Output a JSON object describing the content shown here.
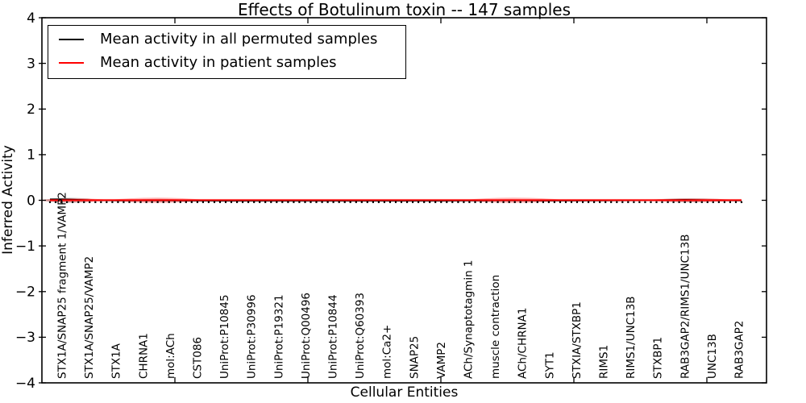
{
  "title": "Effects of Botulinum toxin -- 147 samples",
  "legend": {
    "entries": [
      {
        "label": "Mean activity in all permuted samples",
        "color": "#000000"
      },
      {
        "label": "Mean activity in patient samples",
        "color": "#ff0000"
      }
    ]
  },
  "chart_data": {
    "type": "line",
    "title": "Effects of Botulinum toxin -- 147 samples",
    "xlabel": "Cellular Entities",
    "ylabel": "Inferred Activity",
    "ylim": [
      -4,
      4
    ],
    "yticks": [
      4,
      3,
      2,
      1,
      0,
      -1,
      -2,
      -3,
      -4
    ],
    "grid": false,
    "legend_position": "upper left",
    "background": "#ffffff",
    "n_points": 123,
    "categories": [
      "STX1A/SNAP25 fragment 1/VAMP2",
      "STX1A/SNAP25/VAMP2",
      "STX1A",
      "CHRNA1",
      "mol:ACh",
      "CST086",
      "UniProt:P10845",
      "UniProt:P30996",
      "UniProt:P19321",
      "UniProt:Q00496",
      "UniProt:P10844",
      "UniProt:Q60393",
      "mol:Ca2+",
      "SNAP25",
      "VAMP2",
      "ACh/Synaptotagmin 1",
      "muscle contraction",
      "ACh/CHRNA1",
      "SYT1",
      "STXIA/STXBP1",
      "RIMS1",
      "RIMS1/UNC13B",
      "STXBP1",
      "RAB3GAP2/RIMS1/UNC13B",
      "UNC13B",
      "RAB3GAP2"
    ],
    "series": [
      {
        "name": "Mean activity in all permuted samples",
        "color": "#000000",
        "line_style": "dashed-with-markers",
        "values": [
          0.04,
          0.02,
          0.005,
          0.01,
          0.008,
          0.002,
          0,
          0,
          0,
          0,
          0,
          0,
          0,
          0,
          0,
          0.003,
          0.008,
          0.008,
          0.004,
          0.003,
          0.005,
          0.01,
          0.018,
          0.03,
          0.018,
          0.005
        ]
      },
      {
        "name": "Mean activity in patient samples",
        "color": "#ff0000",
        "line_style": "solid",
        "values": [
          0,
          0,
          0,
          0,
          0,
          0,
          0,
          0,
          0,
          0,
          0,
          0,
          0,
          0,
          0,
          0,
          0,
          0,
          0,
          0,
          0,
          0,
          0,
          0,
          0,
          0
        ]
      }
    ],
    "bands": [
      {
        "name": "permuted-uncertainty",
        "color": "#000000",
        "opacity": 0.22,
        "baseline": false,
        "bumps": [
          {
            "center": 0.3,
            "span": 1.1,
            "peak": 0.055
          },
          {
            "center": 3.6,
            "span": 1.2,
            "peak": 0.03
          },
          {
            "center": 16.6,
            "span": 1.2,
            "peak": 0.022
          },
          {
            "center": 23.2,
            "span": 1.7,
            "peak": 0.045
          }
        ]
      },
      {
        "name": "patient-uncertainty",
        "color": "#ff0000",
        "opacity": 0.26,
        "baseline": true,
        "bumps": [
          {
            "center": 0.45,
            "span": 1.4,
            "peak": 0.045
          },
          {
            "center": 3.5,
            "span": 1.9,
            "peak": 0.06
          },
          {
            "center": 16.7,
            "span": 2.0,
            "peak": 0.06
          },
          {
            "center": 23.3,
            "span": 1.9,
            "peak": 0.04
          }
        ]
      }
    ]
  }
}
